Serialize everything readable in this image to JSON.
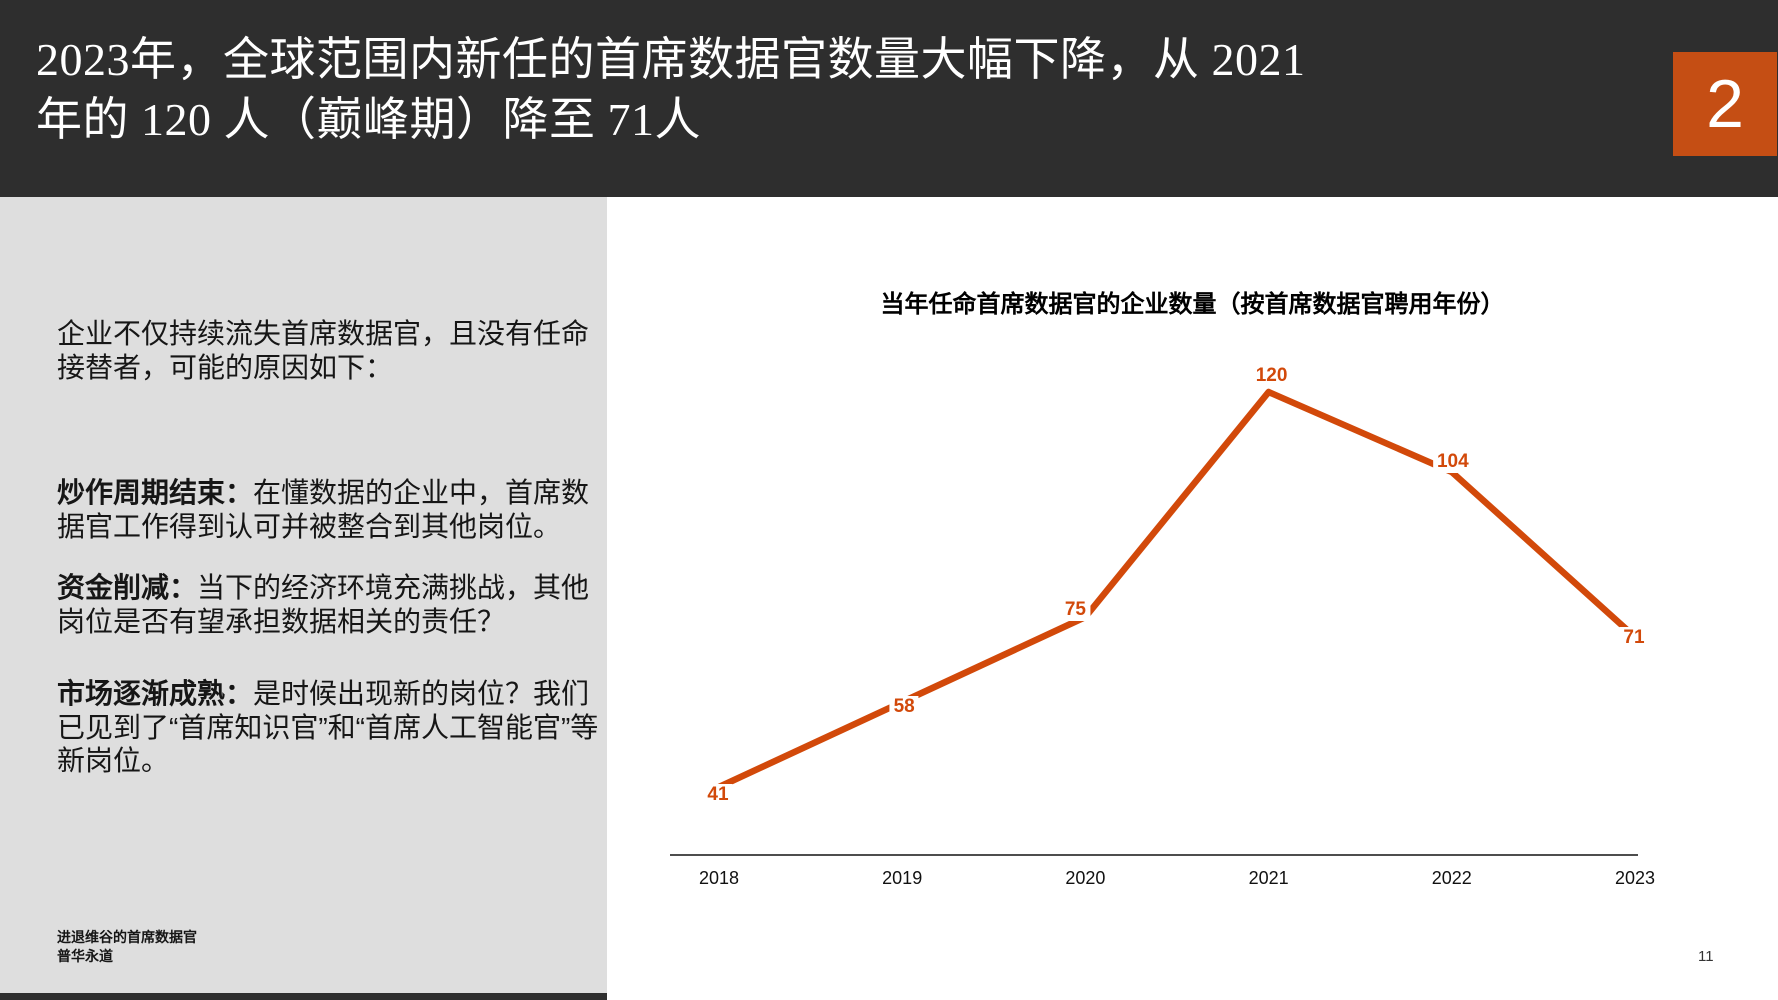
{
  "slide": {
    "header": {
      "title": "2023年，全球范围内新任的首席数据官数量大幅下降，从 2021\n年的 120 人（巅峰期）降至 71人"
    },
    "section_badge": "2",
    "page_number": "11",
    "sidebar": {
      "intro": "企业不仅持续流失首席数据官，且没有任命接替者，可能的原因如下：",
      "reasons": [
        {
          "label": "炒作周期结束：",
          "text": "在懂数据的企业中，首席数据官工作得到认可并被整合到其他岗位。"
        },
        {
          "label": "资金削减：",
          "text": "当下的经济环境充满挑战，其他岗位是否有望承担数据相关的责任？"
        },
        {
          "label": "市场逐渐成熟：",
          "text": "是时候出现新的岗位？我们已见到了“首席知识官”和“首席人工智能官”等新岗位。"
        }
      ],
      "footer_lines": [
        "进退维谷的首席数据官",
        "普华永道"
      ]
    },
    "colors": {
      "header_bg": "#2e2e2e",
      "badge_orange": "#c54e14",
      "sidebar_bg": "#dedede",
      "line_orange": "#d2490a",
      "axis_gray": "#4d4d4d"
    }
  },
  "chart_data": {
    "type": "line",
    "title": "当年任命首席数据官的企业数量（按首席数据官聘用年份）",
    "categories": [
      "2018",
      "2019",
      "2020",
      "2021",
      "2022",
      "2023"
    ],
    "values": [
      41,
      58,
      75,
      120,
      104,
      71
    ],
    "series_name": "当年任命首席数据官的企业数量",
    "series_color": "#d2490a",
    "xlabel": "",
    "ylabel": "",
    "ylim": [
      0,
      135
    ],
    "grid": false,
    "legend": false,
    "data_labels": true
  }
}
